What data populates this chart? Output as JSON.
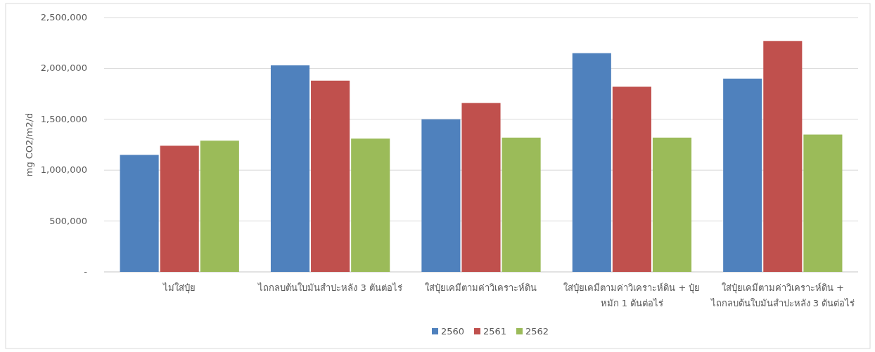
{
  "chart_data": {
    "type": "bar",
    "ylabel": "mg CO2/m2/d",
    "categories": [
      "ไม่ใส่ปุ๋ย",
      "ไถกลบต้นใบมันสำปะหลัง 3 ตันต่อไร่",
      "ใส่ปุ๋ยเคมีตามค่าวิเคราะห์ดิน",
      "ใส่ปุ๋ยเคมีตามค่าวิเคราะห์ดิน  + ปุ๋ยหมัก 1 ตันต่อไร่",
      "ใส่ปุ๋ยเคมีตามค่าวิเคราะห์ดิน  + ไถกลบต้นใบมันสำปะหลัง 3 ตันต่อไร่"
    ],
    "series": [
      {
        "name": "2560",
        "color": "#4f81bd",
        "values": [
          1150000,
          2030000,
          1500000,
          2150000,
          1900000
        ]
      },
      {
        "name": "2561",
        "color": "#c0504d",
        "values": [
          1240000,
          1880000,
          1660000,
          1820000,
          2270000
        ]
      },
      {
        "name": "2562",
        "color": "#9bbb59",
        "values": [
          1290000,
          1310000,
          1320000,
          1320000,
          1350000
        ]
      }
    ],
    "ylim": [
      0,
      2500000
    ],
    "yticks": [
      {
        "value": 0,
        "label": "-"
      },
      {
        "value": 500000,
        "label": "500,000"
      },
      {
        "value": 1000000,
        "label": "1,000,000"
      },
      {
        "value": 1500000,
        "label": "1,500,000"
      },
      {
        "value": 2000000,
        "label": "2,000,000"
      },
      {
        "value": 2500000,
        "label": "2,500,000"
      }
    ],
    "grid": "y",
    "legend": "bottom"
  }
}
